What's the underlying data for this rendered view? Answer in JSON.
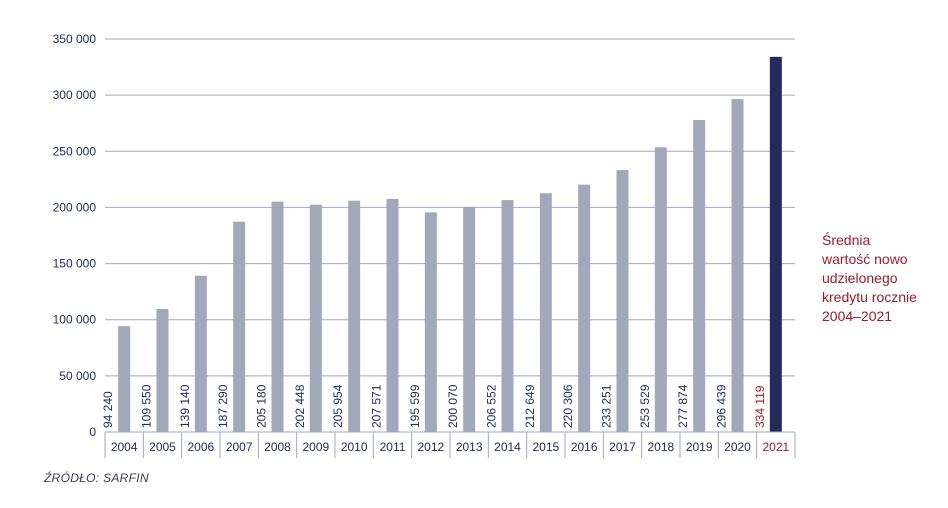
{
  "chart_data": {
    "type": "bar",
    "categories": [
      "2004",
      "2005",
      "2006",
      "2007",
      "2008",
      "2009",
      "2010",
      "2011",
      "2012",
      "2013",
      "2014",
      "2015",
      "2016",
      "2017",
      "2018",
      "2019",
      "2020",
      "2021"
    ],
    "values": [
      94240,
      109550,
      139140,
      187290,
      205180,
      202448,
      205954,
      207571,
      195599,
      200070,
      206552,
      212649,
      220306,
      233251,
      253529,
      277874,
      296439,
      334119
    ],
    "value_labels": [
      "94 240",
      "109 550",
      "139 140",
      "187 290",
      "205 180",
      "202 448",
      "205 954",
      "207 571",
      "195 599",
      "200 070",
      "206 552",
      "212 649",
      "220 306",
      "233 251",
      "253 529",
      "277 874",
      "296 439",
      "334 119"
    ],
    "yticks": [
      0,
      50000,
      100000,
      150000,
      200000,
      250000,
      300000,
      350000
    ],
    "ytick_labels": [
      "0",
      "50 000",
      "100 000",
      "150 000",
      "200 000",
      "250 000",
      "300 000",
      "350 000"
    ],
    "ylim": [
      0,
      350000
    ],
    "grid": true,
    "annotation": "Średnia\nwartość nowo\nudzielonego\nkredytu rocznie\n2004–2021",
    "colors": {
      "bar": "#a3a7ba",
      "bar_highlight": "#222b5c",
      "label": "#222b5c",
      "label_highlight": "#9c1c2a",
      "grid": "#a3a7ba",
      "axis_text": "#222b5c"
    },
    "highlight_category": "2021"
  },
  "source": "ŹRÓDŁO: SARFIN"
}
